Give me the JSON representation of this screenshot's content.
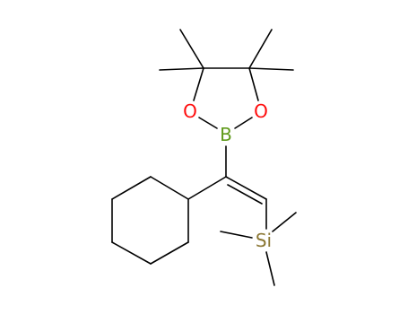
{
  "atoms": [
    {
      "label": "O"
    },
    {
      "label": "O"
    },
    {
      "label": "B"
    },
    {
      "label": "Si"
    }
  ]
}
